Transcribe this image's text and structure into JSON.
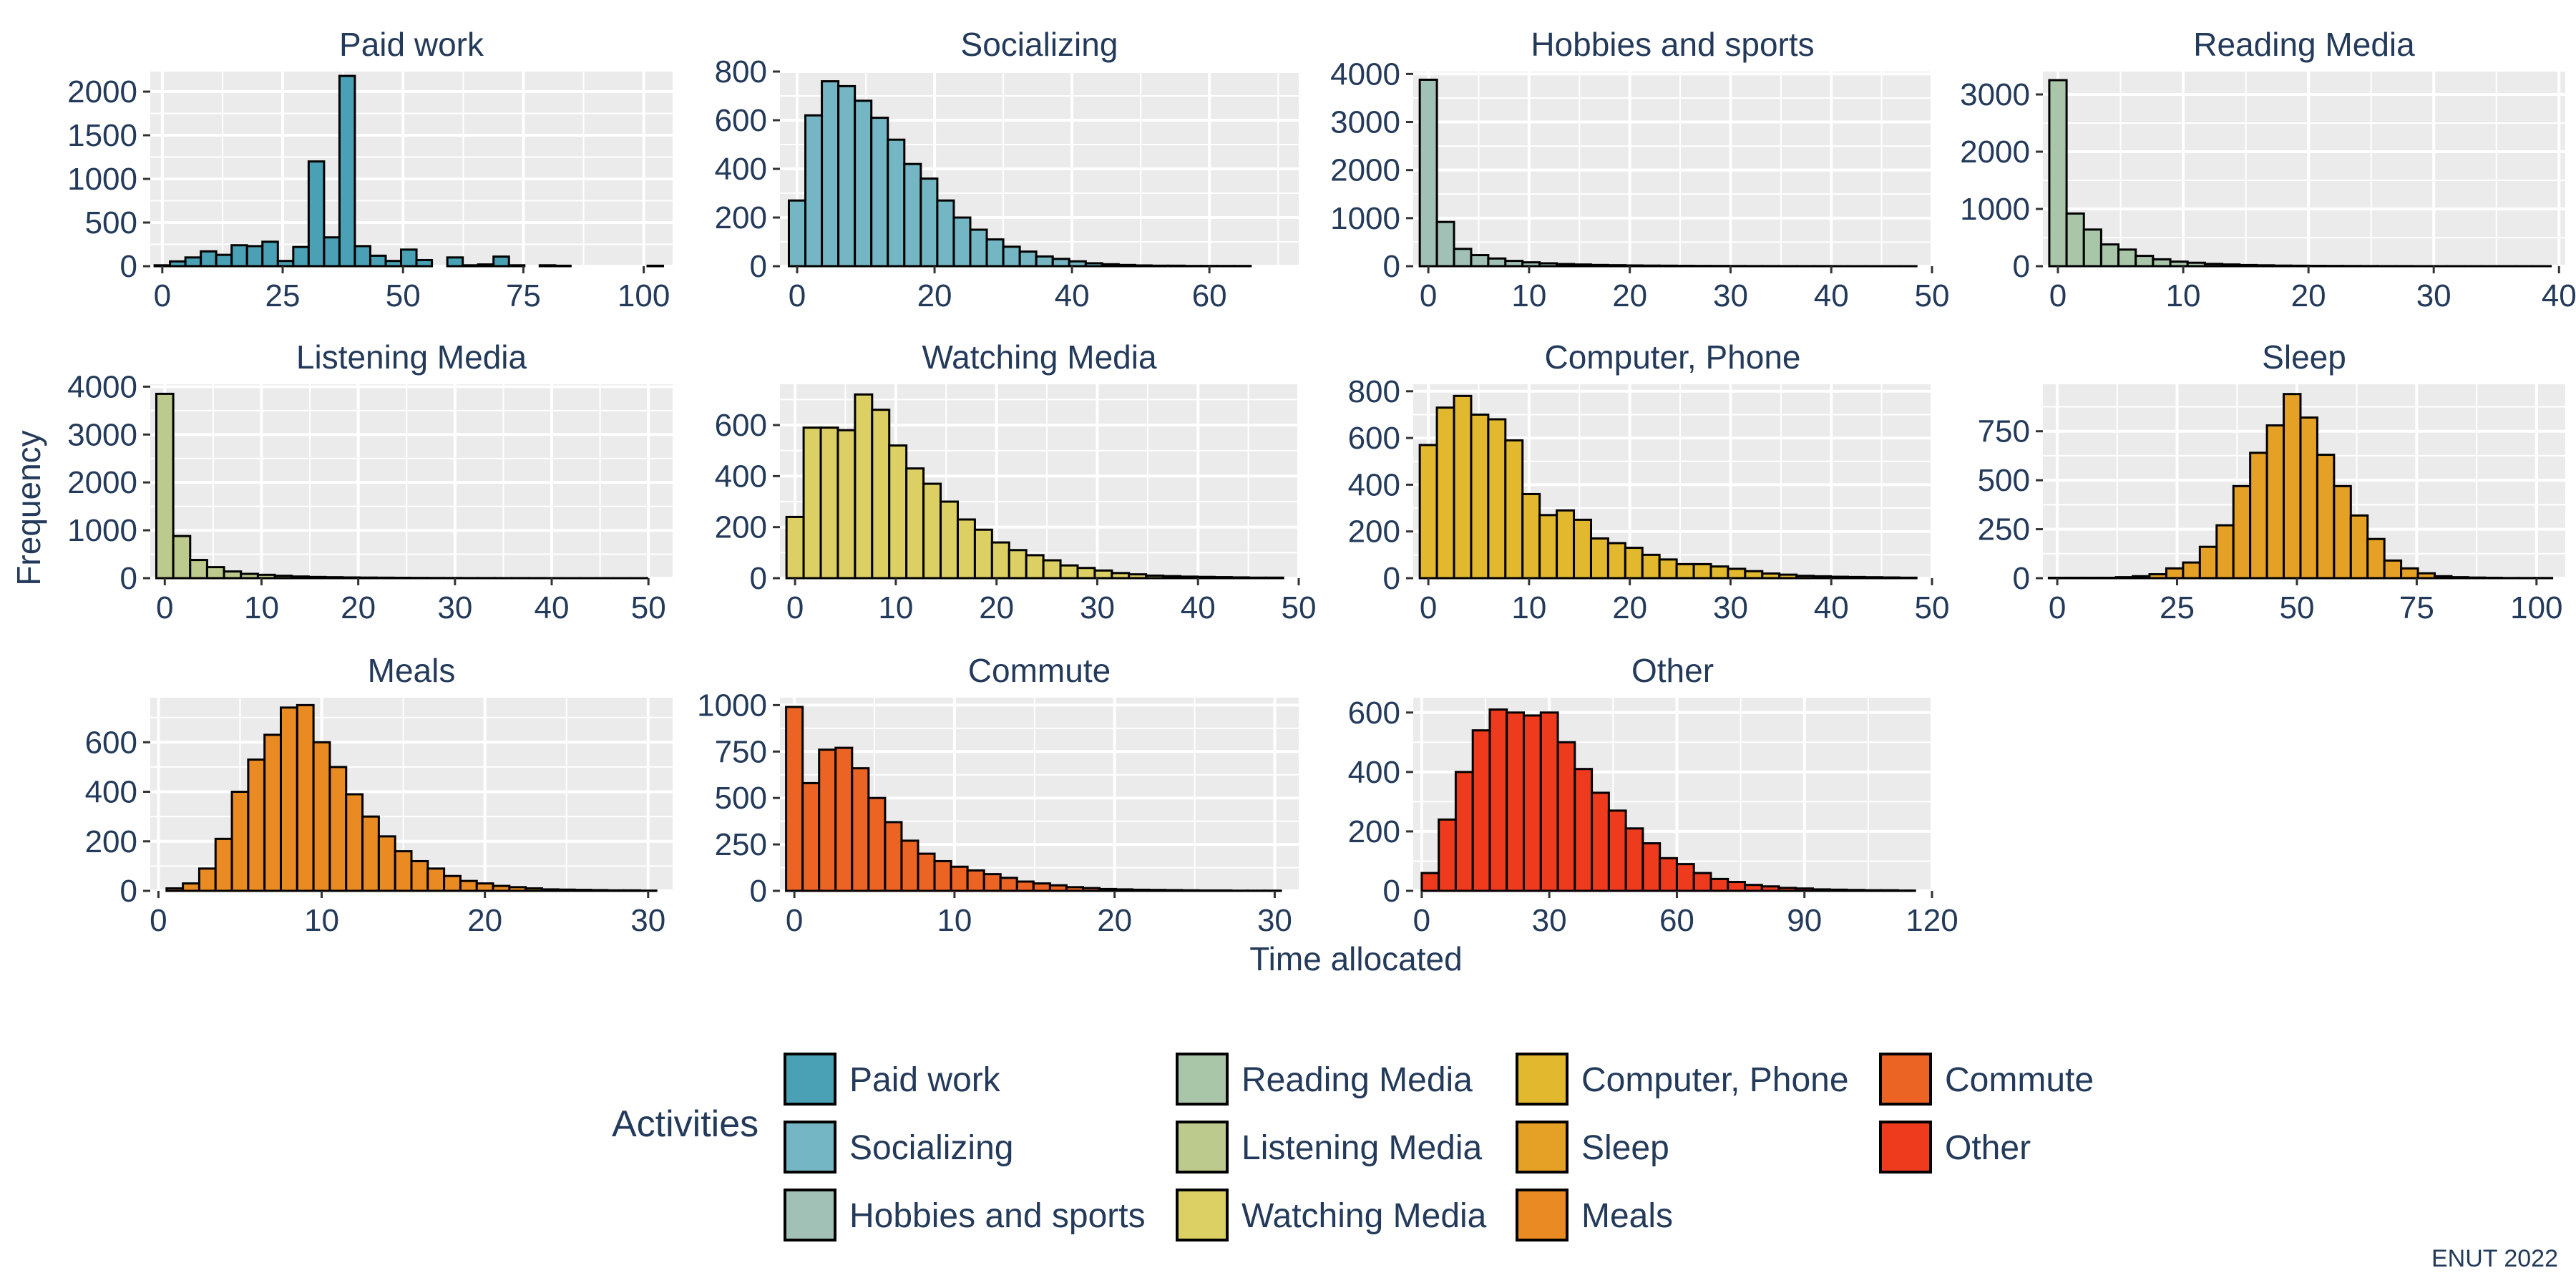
{
  "chart_data": {
    "type": "bar",
    "subtype": "histogram-facets",
    "xlabel": "Time allocated",
    "ylabel": "Frequency",
    "caption": "ENUT 2022",
    "legend_title": "Activities",
    "legend_position": "bottom",
    "grid": true,
    "panels": [
      {
        "name": "Paid work",
        "color": "#4aa0b5",
        "binwidth": 3.2,
        "start": -1.6,
        "xlim": [
          -2.5,
          106
        ],
        "xticks": [
          0,
          25,
          50,
          75,
          100
        ],
        "ylim": [
          0,
          2230
        ],
        "yticks": [
          0,
          500,
          1000,
          1500,
          2000
        ],
        "values": [
          10,
          55,
          100,
          170,
          130,
          240,
          230,
          280,
          60,
          220,
          1200,
          330,
          2180,
          230,
          120,
          60,
          190,
          70,
          0,
          100,
          10,
          20,
          110,
          10,
          0,
          10,
          5,
          0,
          0,
          0,
          0,
          0,
          5
        ]
      },
      {
        "name": "Socializing",
        "color": "#74b6c3",
        "binwidth": 2.4,
        "start": -1.2,
        "xlim": [
          -2.5,
          73
        ],
        "xticks": [
          0,
          20,
          40,
          60
        ],
        "ylim": [
          0,
          800
        ],
        "yticks": [
          0,
          200,
          400,
          600,
          800
        ],
        "values": [
          270,
          620,
          760,
          740,
          680,
          610,
          520,
          420,
          360,
          270,
          200,
          150,
          110,
          80,
          60,
          40,
          30,
          20,
          12,
          8,
          5,
          3,
          2,
          2,
          1,
          1,
          1,
          1,
          0,
          0
        ]
      },
      {
        "name": "Hobbies and sports",
        "color": "#a1c1b6",
        "binwidth": 1.7,
        "start": -0.85,
        "xlim": [
          -1.5,
          50
        ],
        "xticks": [
          0,
          10,
          20,
          30,
          40,
          50
        ],
        "ylim": [
          0,
          4050
        ],
        "yticks": [
          0,
          1000,
          2000,
          3000,
          4000
        ],
        "values": [
          3880,
          920,
          360,
          230,
          160,
          110,
          80,
          60,
          45,
          35,
          25,
          20,
          15,
          12,
          10,
          8,
          6,
          5,
          4,
          3,
          3,
          2,
          2,
          2,
          1,
          1,
          1,
          1,
          1
        ]
      },
      {
        "name": "Reading Media",
        "color": "#a9c6a8",
        "binwidth": 1.38,
        "start": -0.69,
        "xlim": [
          -1.2,
          40.5
        ],
        "xticks": [
          0,
          10,
          20,
          30,
          40
        ],
        "ylim": [
          0,
          3400
        ],
        "yticks": [
          0,
          1000,
          2000,
          3000
        ],
        "values": [
          3250,
          920,
          640,
          380,
          290,
          180,
          120,
          80,
          60,
          40,
          30,
          20,
          15,
          10,
          8,
          6,
          5,
          4,
          3,
          2,
          2,
          1,
          1,
          1,
          1,
          1,
          1,
          1,
          1
        ]
      },
      {
        "name": "Listening Media",
        "color": "#bcca8d",
        "binwidth": 1.75,
        "start": -0.875,
        "xlim": [
          -1.5,
          52.5
        ],
        "xticks": [
          0,
          10,
          20,
          30,
          40,
          50
        ],
        "ylim": [
          0,
          4050
        ],
        "yticks": [
          0,
          1000,
          2000,
          3000,
          4000
        ],
        "values": [
          3850,
          880,
          380,
          230,
          140,
          90,
          70,
          50,
          35,
          25,
          20,
          15,
          12,
          10,
          8,
          6,
          5,
          4,
          3,
          3,
          2,
          2,
          2,
          1,
          1,
          1,
          1,
          1,
          1
        ]
      },
      {
        "name": "Watching Media",
        "color": "#dccf63",
        "binwidth": 1.7,
        "start": -0.85,
        "xlim": [
          -1.5,
          50
        ],
        "xticks": [
          0,
          10,
          20,
          30,
          40,
          50
        ],
        "ylim": [
          0,
          760
        ],
        "yticks": [
          0,
          200,
          400,
          600
        ],
        "values": [
          240,
          590,
          590,
          580,
          720,
          660,
          520,
          430,
          370,
          300,
          230,
          190,
          140,
          110,
          90,
          70,
          50,
          40,
          30,
          20,
          15,
          10,
          8,
          6,
          5,
          4,
          3,
          2,
          2
        ]
      },
      {
        "name": "Computer, Phone",
        "color": "#e2b92e",
        "binwidth": 1.7,
        "start": -0.85,
        "xlim": [
          -1.5,
          50
        ],
        "xticks": [
          0,
          10,
          20,
          30,
          40,
          50
        ],
        "ylim": [
          0,
          830
        ],
        "yticks": [
          0,
          200,
          400,
          600,
          800
        ],
        "values": [
          570,
          730,
          780,
          700,
          680,
          590,
          360,
          270,
          290,
          250,
          170,
          150,
          130,
          100,
          80,
          60,
          60,
          50,
          40,
          30,
          20,
          15,
          10,
          8,
          6,
          5,
          4,
          3,
          2
        ]
      },
      {
        "name": "Sleep",
        "color": "#e5a126",
        "binwidth": 3.5,
        "start": -1.75,
        "xlim": [
          -3,
          106
        ],
        "xticks": [
          0,
          25,
          50,
          75,
          100
        ],
        "ylim": [
          0,
          990
        ],
        "yticks": [
          0,
          250,
          500,
          750
        ],
        "values": [
          2,
          2,
          2,
          2,
          5,
          10,
          20,
          50,
          80,
          160,
          270,
          470,
          640,
          780,
          940,
          820,
          630,
          470,
          320,
          200,
          90,
          50,
          25,
          10,
          5,
          3,
          2,
          1,
          1,
          1
        ]
      },
      {
        "name": "Meals",
        "color": "#e98b22",
        "binwidth": 1.0,
        "start": 0.5,
        "xlim": [
          -0.5,
          31.5
        ],
        "xticks": [
          0,
          10,
          20,
          30
        ],
        "ylim": [
          0,
          780
        ],
        "yticks": [
          0,
          200,
          400,
          600
        ],
        "values": [
          10,
          30,
          90,
          210,
          400,
          530,
          630,
          740,
          750,
          600,
          500,
          390,
          300,
          220,
          160,
          120,
          90,
          60,
          40,
          30,
          20,
          15,
          10,
          6,
          5,
          4,
          3,
          2,
          2,
          1
        ]
      },
      {
        "name": "Commute",
        "color": "#ec6424",
        "binwidth": 1.03,
        "start": -0.515,
        "xlim": [
          -0.9,
          31.5
        ],
        "xticks": [
          0,
          10,
          20,
          30
        ],
        "ylim": [
          0,
          1040
        ],
        "yticks": [
          0,
          250,
          500,
          750,
          1000
        ],
        "values": [
          990,
          580,
          760,
          770,
          660,
          500,
          370,
          270,
          200,
          160,
          130,
          110,
          90,
          70,
          50,
          40,
          30,
          20,
          15,
          10,
          8,
          6,
          5,
          4,
          3,
          2,
          2,
          1,
          1,
          1
        ]
      },
      {
        "name": "Other",
        "color": "#ee3a1d",
        "binwidth": 4.0,
        "start": 0,
        "xlim": [
          -2,
          120
        ],
        "xticks": [
          0,
          30,
          60,
          90,
          120
        ],
        "ylim": [
          0,
          650
        ],
        "yticks": [
          0,
          200,
          400,
          600
        ],
        "values": [
          60,
          240,
          400,
          540,
          610,
          600,
          590,
          600,
          500,
          410,
          330,
          270,
          210,
          160,
          110,
          90,
          60,
          40,
          30,
          20,
          15,
          10,
          8,
          5,
          4,
          3,
          2,
          2,
          1
        ]
      }
    ],
    "legend": [
      {
        "name": "Paid work",
        "color": "#4aa0b5"
      },
      {
        "name": "Socializing",
        "color": "#74b6c3"
      },
      {
        "name": "Hobbies and sports",
        "color": "#a1c1b6"
      },
      {
        "name": "Reading Media",
        "color": "#a9c6a8"
      },
      {
        "name": "Listening Media",
        "color": "#bcca8d"
      },
      {
        "name": "Watching Media",
        "color": "#dccf63"
      },
      {
        "name": "Computer, Phone",
        "color": "#e2b92e"
      },
      {
        "name": "Sleep",
        "color": "#e5a126"
      },
      {
        "name": "Meals",
        "color": "#e98b22"
      },
      {
        "name": "Commute",
        "color": "#ec6424"
      },
      {
        "name": "Other",
        "color": "#ee3a1d"
      }
    ]
  }
}
